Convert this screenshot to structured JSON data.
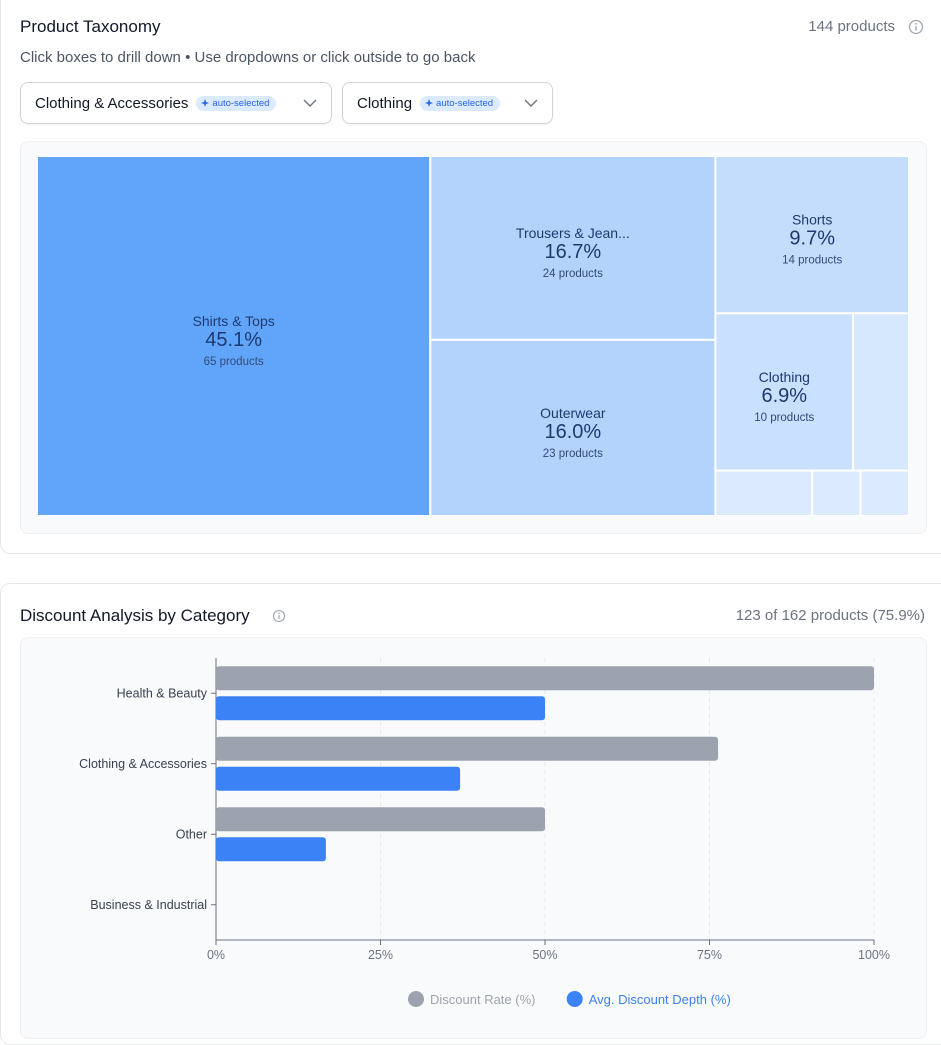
{
  "taxonomy": {
    "title": "Product Taxonomy",
    "count": "144 products",
    "hint": "Click boxes to drill down • Use dropdowns or click outside to go back",
    "dropdowns": [
      {
        "label": "Clothing & Accessories",
        "badge": "auto-selected"
      },
      {
        "label": "Clothing",
        "badge": "auto-selected"
      }
    ],
    "treemap": {
      "items": [
        {
          "name": "Shirts & Tops",
          "value": 45.1,
          "value_label": "45.1%",
          "count_label": "65 products",
          "color": "#60a5fa"
        },
        {
          "name": "Trousers & Jean...",
          "value": 16.7,
          "value_label": "16.7%",
          "count_label": "24 products",
          "color": "#b3d3fd"
        },
        {
          "name": "Outerwear",
          "value": 16.0,
          "value_label": "16.0%",
          "count_label": "23 products",
          "color": "#b3d3fd"
        },
        {
          "name": "Shorts",
          "value": 9.7,
          "value_label": "9.7%",
          "count_label": "14 products",
          "color": "#c4ddfd"
        },
        {
          "name": "Clothing",
          "value": 6.9,
          "value_label": "6.9%",
          "count_label": "10 products",
          "color": "#c9e0fe"
        },
        {
          "name": null,
          "value": 2.8,
          "color": "#d6e8fe"
        },
        {
          "name": null,
          "value": 1.4,
          "color": "#dbeafe"
        },
        {
          "name": null,
          "value": 0.7,
          "color": "#dbeafe"
        },
        {
          "name": null,
          "value": 0.7,
          "color": "#dbeafe"
        }
      ]
    }
  },
  "discount": {
    "title": "Discount Analysis by Category",
    "count": "123 of 162 products (75.9%)",
    "chart": {
      "type": "bar",
      "orientation": "horizontal",
      "categories": [
        "Health & Beauty",
        "Clothing & Accessories",
        "Other",
        "Business & Industrial"
      ],
      "series": [
        {
          "name": "Discount Rate (%)",
          "color": "#9ca3af",
          "values": [
            100,
            76.3,
            50,
            0
          ]
        },
        {
          "name": "Avg. Discount Depth (%)",
          "color": "#3b82f6",
          "values": [
            50,
            37.1,
            16.7,
            0
          ]
        }
      ],
      "xlim": [
        0,
        100
      ],
      "xticks": [
        {
          "value": 0,
          "label": "0%"
        },
        {
          "value": 25,
          "label": "25%"
        },
        {
          "value": 50,
          "label": "50%"
        },
        {
          "value": 75,
          "label": "75%"
        },
        {
          "value": 100,
          "label": "100%"
        }
      ],
      "grid": true,
      "legend": "bottom"
    }
  }
}
